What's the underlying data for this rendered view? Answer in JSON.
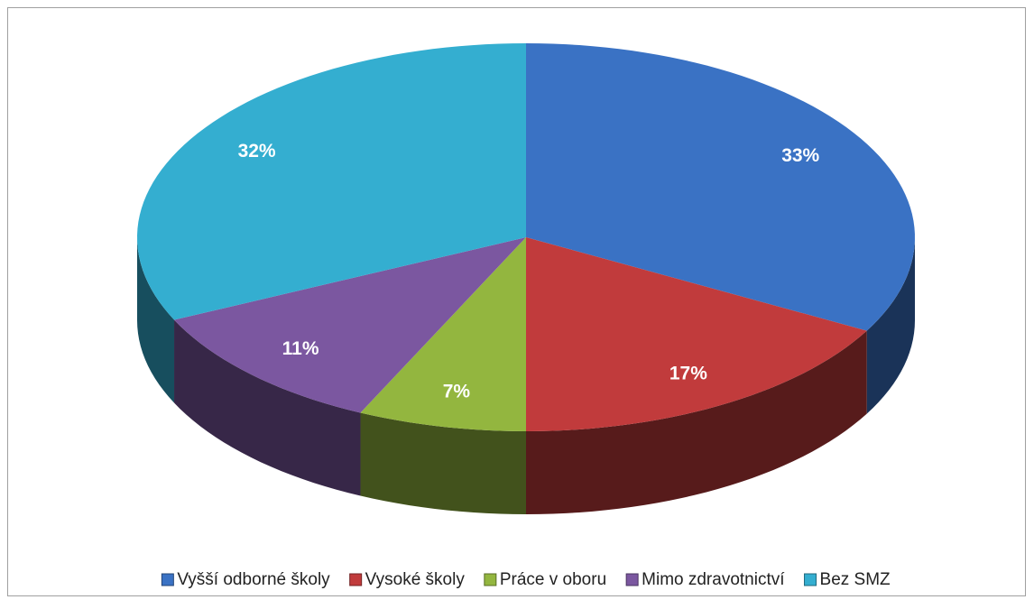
{
  "chart_data": {
    "type": "pie",
    "categories": [
      "Vyšší odborné školy",
      "Vysoké školy",
      "Práce v oboru",
      "Mimo zdravotnictví",
      "Bez SMZ"
    ],
    "values": [
      33,
      17,
      7,
      11,
      32
    ],
    "value_labels": [
      "33%",
      "17%",
      "7%",
      "11%",
      "32%"
    ],
    "colors": [
      "#3a72c4",
      "#c13b3c",
      "#93b63f",
      "#7b57a0",
      "#34aed0"
    ],
    "legend": "bottom"
  }
}
